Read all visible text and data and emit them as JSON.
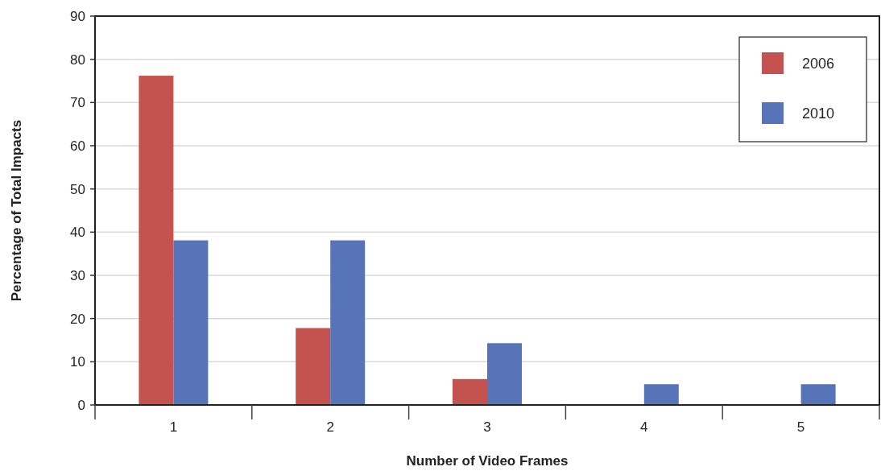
{
  "chart_data": {
    "type": "bar",
    "xlabel": "Number of Video Frames",
    "ylabel": "Percentage of Total Impacts",
    "categories": [
      "1",
      "2",
      "3",
      "4",
      "5"
    ],
    "series": [
      {
        "name": "2006",
        "color": "#c4534f",
        "values": [
          76.2,
          17.8,
          6,
          0,
          0
        ]
      },
      {
        "name": "2010",
        "color": "#5774b8",
        "values": [
          38.1,
          38.1,
          14.3,
          4.8,
          4.8
        ]
      }
    ],
    "ylim": [
      0,
      90
    ],
    "yticks": [
      0,
      10,
      20,
      30,
      40,
      50,
      60,
      70,
      80,
      90
    ],
    "grid": "y",
    "legend": "top right"
  }
}
